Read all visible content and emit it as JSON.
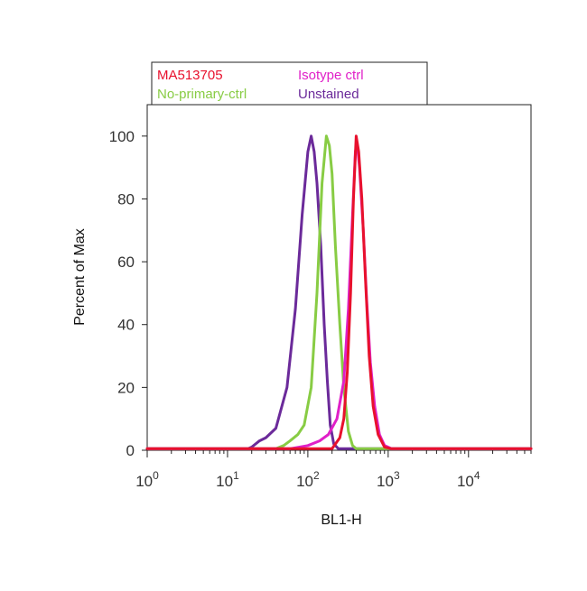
{
  "chart_data": {
    "type": "line",
    "xlabel": "BL1-H",
    "ylabel": "Percent of Max",
    "xscale": "log",
    "xlim": [
      1,
      60000
    ],
    "ylim": [
      0,
      110
    ],
    "x_ticks": [
      1,
      10,
      100,
      1000,
      10000
    ],
    "y_ticks": [
      0,
      20,
      40,
      60,
      80,
      100
    ],
    "y_tick_labels": [
      "0",
      "20",
      "40",
      "60",
      "80",
      "100"
    ],
    "legend_position": "top",
    "series": [
      {
        "name": "MA513705",
        "color": "#e8112d",
        "points": [
          [
            1,
            0.5
          ],
          [
            200,
            0.5
          ],
          [
            250,
            4
          ],
          [
            280,
            10
          ],
          [
            310,
            25
          ],
          [
            340,
            50
          ],
          [
            370,
            80
          ],
          [
            400,
            100
          ],
          [
            430,
            95
          ],
          [
            470,
            80
          ],
          [
            520,
            55
          ],
          [
            580,
            30
          ],
          [
            650,
            14
          ],
          [
            750,
            5
          ],
          [
            900,
            1
          ],
          [
            1100,
            0.5
          ],
          [
            60000,
            0.5
          ]
        ]
      },
      {
        "name": "Isotype ctrl",
        "color": "#e020c8",
        "points": [
          [
            1,
            0.5
          ],
          [
            60,
            0.5
          ],
          [
            100,
            1.5
          ],
          [
            140,
            3
          ],
          [
            180,
            5
          ],
          [
            230,
            10
          ],
          [
            280,
            22
          ],
          [
            320,
            45
          ],
          [
            360,
            75
          ],
          [
            390,
            95
          ],
          [
            410,
            98
          ],
          [
            440,
            90
          ],
          [
            490,
            70
          ],
          [
            540,
            48
          ],
          [
            600,
            28
          ],
          [
            680,
            14
          ],
          [
            780,
            5
          ],
          [
            900,
            1.5
          ],
          [
            1100,
            0.5
          ],
          [
            60000,
            0.5
          ]
        ]
      },
      {
        "name": "No-primary-ctrl",
        "color": "#88cc44",
        "points": [
          [
            1,
            0.5
          ],
          [
            40,
            0.5
          ],
          [
            50,
            1.5
          ],
          [
            60,
            3
          ],
          [
            75,
            5
          ],
          [
            90,
            8
          ],
          [
            110,
            20
          ],
          [
            130,
            50
          ],
          [
            150,
            85
          ],
          [
            170,
            100
          ],
          [
            185,
            97
          ],
          [
            200,
            88
          ],
          [
            220,
            65
          ],
          [
            250,
            40
          ],
          [
            280,
            20
          ],
          [
            320,
            6
          ],
          [
            360,
            1.5
          ],
          [
            400,
            0.5
          ],
          [
            60000,
            0.5
          ]
        ]
      },
      {
        "name": "Unstained",
        "color": "#6b2a9a",
        "points": [
          [
            1,
            0.5
          ],
          [
            18,
            0.5
          ],
          [
            20,
            1
          ],
          [
            25,
            3
          ],
          [
            30,
            4
          ],
          [
            40,
            7
          ],
          [
            55,
            20
          ],
          [
            70,
            45
          ],
          [
            85,
            75
          ],
          [
            100,
            95
          ],
          [
            110,
            100
          ],
          [
            120,
            95
          ],
          [
            130,
            85
          ],
          [
            145,
            65
          ],
          [
            160,
            40
          ],
          [
            175,
            22
          ],
          [
            190,
            8
          ],
          [
            210,
            2
          ],
          [
            240,
            0.5
          ],
          [
            60000,
            0.5
          ]
        ]
      }
    ]
  }
}
